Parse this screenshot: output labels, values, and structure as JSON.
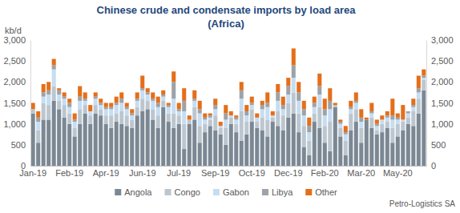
{
  "chart_data": {
    "type": "bar",
    "title": "Chinese crude and condensate imports by load area",
    "subtitle": "(Africa)",
    "y_label": "kb/d",
    "annotations": [
      "Petro-Logistics SA"
    ],
    "stacked": true,
    "grid": false,
    "legend": "bottom",
    "categories": [
      "Jan-19",
      null,
      null,
      null,
      null,
      null,
      null,
      "Feb-19",
      null,
      null,
      null,
      null,
      null,
      null,
      "Apr-19",
      null,
      null,
      null,
      null,
      null,
      null,
      "Jun-19",
      null,
      null,
      null,
      null,
      null,
      null,
      "Jul-19",
      null,
      null,
      null,
      null,
      null,
      null,
      "Sep-19",
      null,
      null,
      null,
      null,
      null,
      null,
      "Oct-19",
      null,
      null,
      null,
      null,
      null,
      null,
      "Dec-19",
      null,
      null,
      null,
      null,
      null,
      null,
      "Feb-20",
      null,
      null,
      null,
      null,
      null,
      null,
      "Mar-20",
      null,
      null,
      null,
      null,
      null,
      null,
      "May-20",
      null,
      null,
      null,
      null,
      null
    ],
    "series": [
      {
        "name": "Angola",
        "color": "#7b8894",
        "values": [
          1250,
          550,
          1100,
          1100,
          1550,
          1350,
          1150,
          1000,
          700,
          1000,
          1250,
          1000,
          1250,
          1200,
          1000,
          900,
          1050,
          1000,
          950,
          900,
          1200,
          1300,
          1350,
          1100,
          900,
          1400,
          1050,
          900,
          1000,
          400,
          1000,
          1100,
          550,
          800,
          950,
          850,
          750,
          500,
          1000,
          800,
          600,
          750,
          1050,
          900,
          850,
          700,
          1050,
          950,
          850,
          1150,
          1250,
          800,
          450,
          250,
          1050,
          900,
          550,
          350,
          1400,
          700,
          250,
          850,
          1050,
          550,
          1100,
          900,
          750,
          800,
          900,
          550,
          700,
          850,
          1000,
          950,
          1250,
          1800
        ]
      },
      {
        "name": "Congo",
        "color": "#bcc6cf",
        "values": [
          100,
          300,
          400,
          350,
          350,
          200,
          300,
          250,
          200,
          350,
          200,
          200,
          200,
          150,
          200,
          300,
          200,
          300,
          250,
          200,
          200,
          300,
          200,
          250,
          300,
          150,
          200,
          350,
          200,
          600,
          100,
          300,
          400,
          200,
          150,
          350,
          150,
          400,
          150,
          200,
          700,
          300,
          300,
          150,
          300,
          400,
          100,
          350,
          350,
          350,
          500,
          450,
          500,
          350,
          200,
          500,
          400,
          700,
          50,
          200,
          350,
          400,
          300,
          350,
          0,
          250,
          100,
          200,
          150,
          350,
          300,
          200,
          150,
          350,
          350,
          250
        ]
      },
      {
        "name": "Gabon",
        "color": "#c6ddf2",
        "values": [
          0,
          200,
          150,
          250,
          400,
          150,
          150,
          150,
          150,
          200,
          100,
          100,
          150,
          100,
          150,
          150,
          200,
          200,
          150,
          100,
          150,
          200,
          150,
          200,
          200,
          100,
          150,
          350,
          100,
          300,
          0,
          150,
          300,
          100,
          50,
          150,
          50,
          200,
          50,
          100,
          300,
          150,
          100,
          100,
          200,
          300,
          50,
          250,
          150,
          200,
          350,
          300,
          250,
          200,
          150,
          300,
          250,
          300,
          0,
          100,
          150,
          100,
          150,
          150,
          0,
          100,
          100,
          100,
          100,
          200,
          100,
          50,
          100,
          100,
          150,
          50
        ]
      },
      {
        "name": "Libya",
        "color": "#9da3a8",
        "values": [
          0,
          100,
          100,
          100,
          100,
          100,
          50,
          100,
          50,
          100,
          50,
          0,
          50,
          50,
          50,
          50,
          50,
          100,
          50,
          50,
          50,
          50,
          50,
          50,
          100,
          50,
          50,
          400,
          50,
          250,
          0,
          50,
          100,
          50,
          50,
          100,
          0,
          150,
          0,
          50,
          200,
          100,
          50,
          0,
          100,
          100,
          0,
          200,
          100,
          200,
          300,
          200,
          150,
          150,
          100,
          200,
          150,
          200,
          0,
          50,
          50,
          50,
          50,
          100,
          0,
          50,
          50,
          0,
          50,
          100,
          50,
          0,
          50,
          50,
          100,
          50
        ]
      },
      {
        "name": "Other",
        "color": "#e46f1a",
        "values": [
          150,
          150,
          200,
          200,
          150,
          50,
          100,
          100,
          150,
          250,
          150,
          150,
          100,
          100,
          100,
          100,
          150,
          150,
          100,
          100,
          150,
          300,
          100,
          150,
          150,
          100,
          50,
          250,
          150,
          300,
          100,
          200,
          200,
          100,
          50,
          150,
          100,
          200,
          100,
          50,
          200,
          150,
          150,
          100,
          100,
          250,
          100,
          200,
          200,
          200,
          400,
          250,
          200,
          200,
          150,
          300,
          250,
          300,
          50,
          50,
          150,
          150,
          200,
          200,
          50,
          200,
          100,
          100,
          100,
          400,
          100,
          350,
          0,
          150,
          300,
          150
        ]
      }
    ],
    "ylim": [
      0,
      3000
    ],
    "yticks": [
      0,
      500,
      {
        "value": 1000,
        "label": "1,000"
      },
      {
        "value": 1500,
        "label": "1,500"
      },
      {
        "value": 2000,
        "label": "2,000"
      },
      {
        "value": 2500,
        "label": "2,500"
      },
      {
        "value": 3000,
        "label": "3,000"
      }
    ],
    "y2lim": [
      0,
      3000
    ],
    "y2ticks": [
      0,
      500,
      {
        "value": 1000,
        "label": "1,000"
      },
      {
        "value": 1500,
        "label": "1,500"
      },
      {
        "value": 2000,
        "label": "2,000"
      },
      {
        "value": 2500,
        "label": "2,500"
      },
      {
        "value": 3000,
        "label": "3,000"
      }
    ]
  }
}
